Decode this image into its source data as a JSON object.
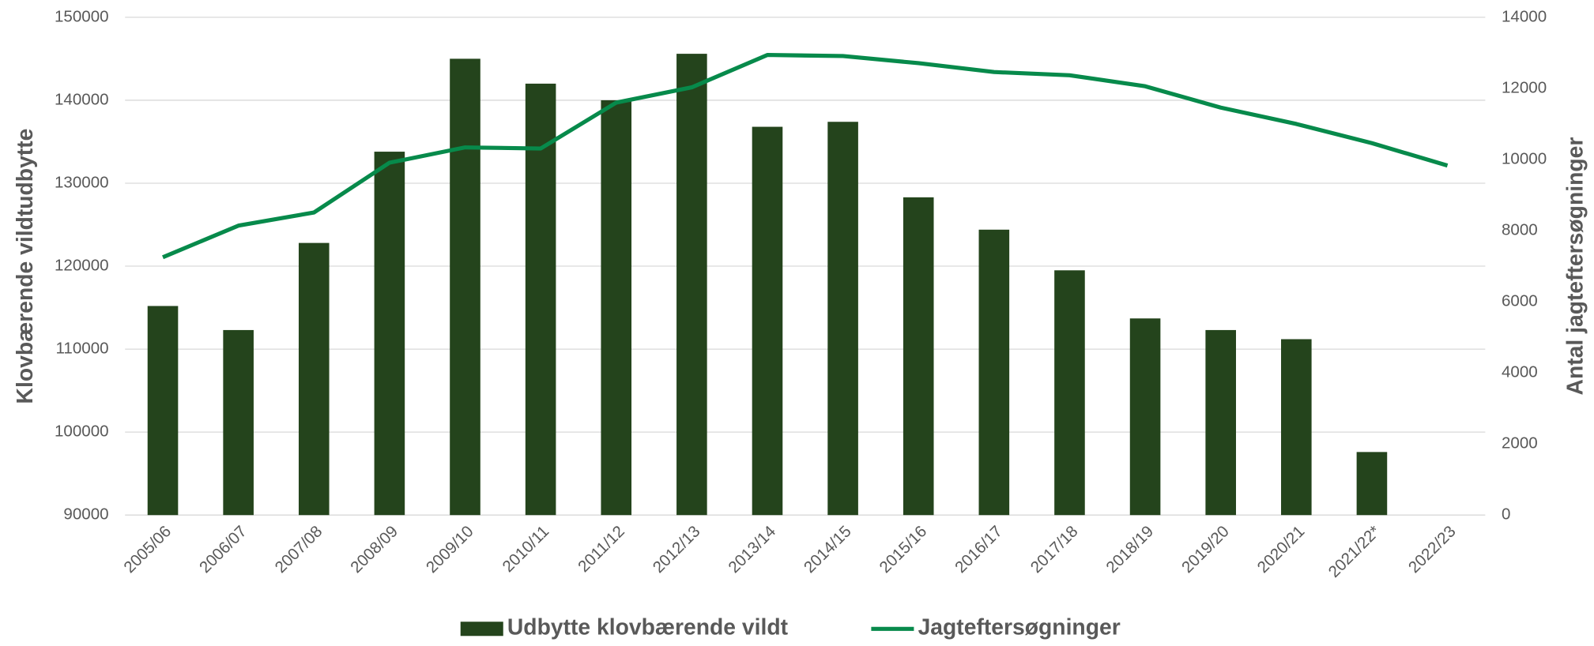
{
  "chart_data": {
    "type": "bar_line",
    "categories": [
      "2005/06",
      "2006/07",
      "2007/08",
      "2008/09",
      "2009/10",
      "2010/11",
      "2011/12",
      "2012/13",
      "2013/14",
      "2014/15",
      "2015/16",
      "2016/17",
      "2017/18",
      "2018/19",
      "2019/20",
      "2020/21",
      "2021/22*",
      "2022/23"
    ],
    "y_label": "Klovbærende vildtudbytte",
    "y2_label": "Antal jagteftersøgninger",
    "series": [
      {
        "name": "Udbytte klovbærende vildt",
        "type": "bar",
        "color": "#24441c",
        "axis": "y",
        "values": [
          115200,
          112300,
          122800,
          133800,
          145000,
          142000,
          140000,
          145600,
          136800,
          137400,
          128300,
          124400,
          119500,
          113700,
          112300,
          111200,
          97600,
          null
        ]
      },
      {
        "name": "Jagteftersøgninger",
        "type": "line",
        "color": "#078a4b",
        "axis": "y2",
        "values": [
          7250,
          8140,
          8510,
          9910,
          10340,
          10310,
          11600,
          12030,
          12940,
          12910,
          12710,
          12460,
          12370,
          12060,
          11460,
          11000,
          10460,
          9830
        ]
      }
    ],
    "ylim": [
      90000,
      150000
    ],
    "yticks": [
      90000,
      100000,
      110000,
      120000,
      130000,
      140000,
      150000
    ],
    "y2lim": [
      0,
      14000
    ],
    "y2ticks": [
      0,
      2000,
      4000,
      6000,
      8000,
      10000,
      12000,
      14000
    ],
    "grid": true,
    "legend": "bottom"
  }
}
